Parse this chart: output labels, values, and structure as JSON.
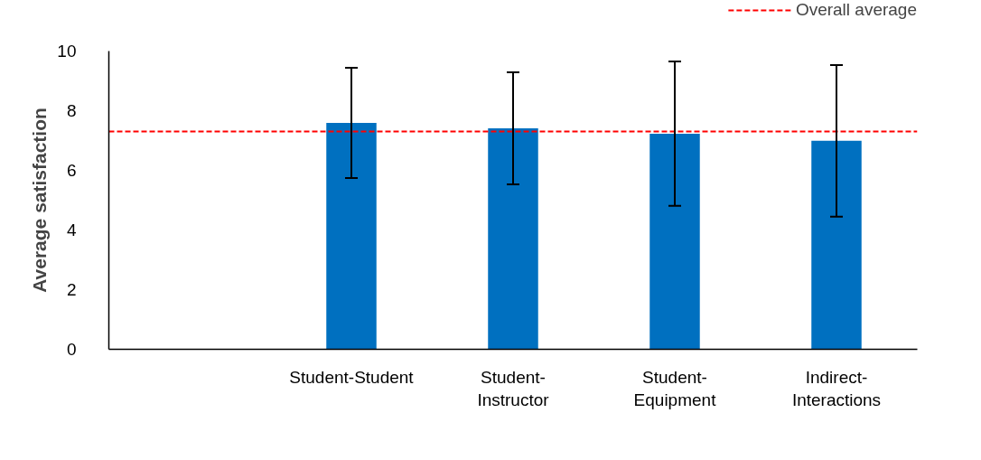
{
  "chart_data": {
    "type": "bar",
    "ylabel": "Average satisfaction",
    "categories": [
      null,
      "Student-Student",
      "Student-Instructor",
      "Student-Equipment",
      "Indirect-Interactions"
    ],
    "values": [
      null,
      7.59,
      7.41,
      7.23,
      6.99
    ],
    "errors": [
      null,
      1.85,
      1.88,
      2.42,
      2.54
    ],
    "color": "#0070c0",
    "ylim": [
      0,
      10
    ],
    "yticks": [
      0,
      2,
      4,
      6,
      8,
      10
    ],
    "grid": false,
    "ref_lines": [
      {
        "axis": "y",
        "value": 7.3,
        "label": "Overall average",
        "color": "#ff0000",
        "line_style": "dashed"
      }
    ],
    "legend": "top right"
  }
}
